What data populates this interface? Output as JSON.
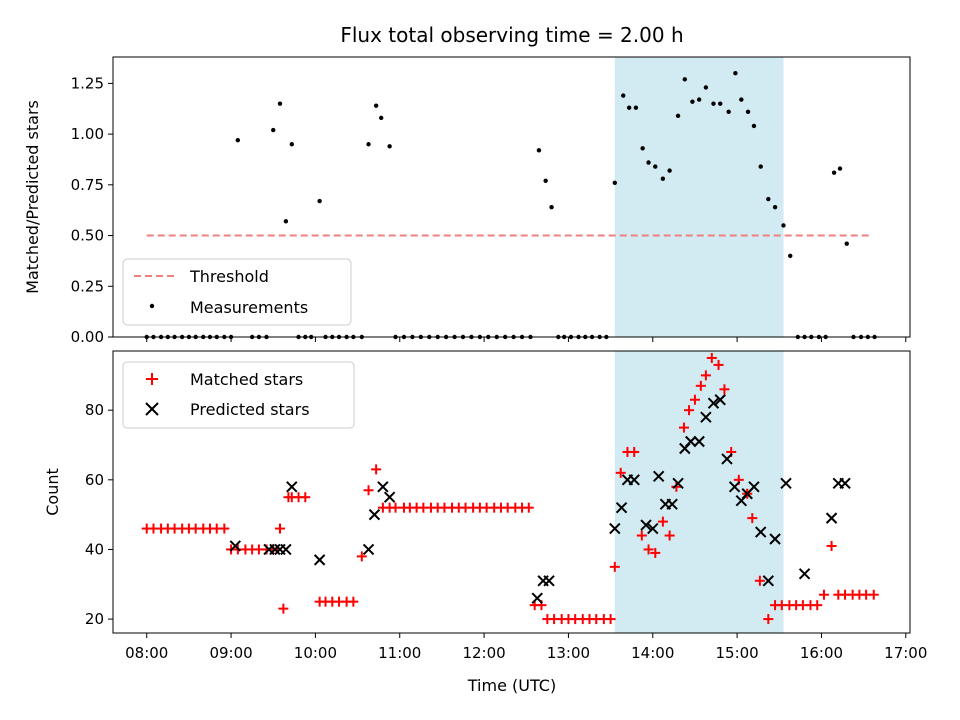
{
  "chart_data": [
    {
      "type": "scatter",
      "title": "Flux total observing time = 2.00 h",
      "xlabel": "",
      "ylabel": "Matched/Predicted stars",
      "ylim": [
        0,
        1.38
      ],
      "yticks": [
        "0.00",
        "0.25",
        "0.50",
        "0.75",
        "1.00",
        "1.25"
      ],
      "shaded_region": {
        "x_start": 13.55,
        "x_end": 15.55,
        "color": "#add8e6"
      },
      "legend_position": "lower-left",
      "series": [
        {
          "name": "Threshold",
          "style": "dashed-line",
          "color": "#f08080",
          "x": [
            8.0,
            16.6
          ],
          "y": [
            0.5,
            0.5
          ]
        },
        {
          "name": "Measurements",
          "style": "point",
          "color": "#000000",
          "x": [
            8.0,
            8.08,
            8.17,
            8.25,
            8.33,
            8.42,
            8.5,
            8.58,
            8.67,
            8.75,
            8.83,
            8.92,
            9.0,
            9.08,
            9.25,
            9.33,
            9.42,
            9.5,
            9.58,
            9.65,
            9.72,
            9.8,
            9.88,
            9.95,
            10.05,
            10.12,
            10.2,
            10.28,
            10.37,
            10.45,
            10.55,
            10.63,
            10.72,
            10.78,
            10.88,
            10.95,
            11.05,
            11.15,
            11.25,
            11.35,
            11.45,
            11.55,
            11.65,
            11.75,
            11.85,
            11.95,
            12.05,
            12.15,
            12.25,
            12.35,
            12.45,
            12.55,
            12.65,
            12.73,
            12.8,
            12.88,
            12.95,
            13.03,
            13.12,
            13.2,
            13.28,
            13.37,
            13.45,
            13.55,
            13.65,
            13.72,
            13.8,
            13.88,
            13.95,
            14.03,
            14.12,
            14.2,
            14.3,
            14.38,
            14.47,
            14.55,
            14.63,
            14.72,
            14.8,
            14.9,
            14.98,
            15.05,
            15.13,
            15.2,
            15.28,
            15.37,
            15.45,
            15.55,
            15.63,
            15.72,
            15.8,
            15.88,
            15.97,
            16.05,
            16.15,
            16.22,
            16.3,
            16.38,
            16.47,
            16.55,
            16.63
          ],
          "y": [
            0,
            0,
            0,
            0,
            0,
            0,
            0,
            0,
            0,
            0,
            0,
            0,
            0,
            0.97,
            0,
            0,
            0,
            1.02,
            1.15,
            0.57,
            0.95,
            0,
            0,
            0,
            0.67,
            0,
            0,
            0,
            0,
            0,
            0,
            0.95,
            1.14,
            1.08,
            0.94,
            0,
            0,
            0,
            0,
            0,
            0,
            0,
            0,
            0,
            0,
            0,
            0,
            0,
            0,
            0,
            0,
            0,
            0.92,
            0.77,
            0.64,
            0,
            0,
            0,
            0,
            0,
            0,
            0,
            0,
            0.76,
            1.19,
            1.13,
            1.13,
            0.93,
            0.86,
            0.84,
            0.78,
            0.82,
            1.09,
            1.27,
            1.16,
            1.17,
            1.23,
            1.15,
            1.15,
            1.11,
            1.3,
            1.17,
            1.11,
            1.04,
            0.84,
            0.68,
            0.64,
            0.55,
            0.4,
            0,
            0,
            0,
            0,
            0,
            0.81,
            0.83,
            0.46,
            0,
            0,
            0,
            0
          ]
        }
      ]
    },
    {
      "type": "scatter",
      "xlabel": "Time (UTC)",
      "ylabel": "Count",
      "ylim": [
        16,
        97
      ],
      "yticks": [
        "20",
        "40",
        "60",
        "80"
      ],
      "xlim": [
        7.6,
        17.05
      ],
      "xticks": [
        "08:00",
        "09:00",
        "10:00",
        "11:00",
        "12:00",
        "13:00",
        "14:00",
        "15:00",
        "16:00",
        "17:00"
      ],
      "shaded_region": {
        "x_start": 13.55,
        "x_end": 15.55,
        "color": "#add8e6"
      },
      "legend_position": "top-left",
      "series": [
        {
          "name": "Matched stars",
          "style": "plus",
          "color": "#ff0000",
          "x": [
            8.0,
            8.08,
            8.17,
            8.25,
            8.33,
            8.42,
            8.5,
            8.58,
            8.67,
            8.75,
            8.83,
            8.92,
            9.0,
            9.08,
            9.17,
            9.25,
            9.33,
            9.42,
            9.5,
            9.58,
            9.62,
            9.68,
            9.72,
            9.8,
            9.88,
            10.05,
            10.12,
            10.2,
            10.28,
            10.37,
            10.45,
            10.55,
            10.63,
            10.72,
            10.8,
            10.88,
            10.95,
            11.05,
            11.12,
            11.2,
            11.28,
            11.37,
            11.45,
            11.53,
            11.62,
            11.7,
            11.78,
            11.87,
            11.95,
            12.03,
            12.12,
            12.2,
            12.28,
            12.37,
            12.45,
            12.53,
            12.6,
            12.68,
            12.75,
            12.83,
            12.92,
            13.0,
            13.08,
            13.17,
            13.25,
            13.33,
            13.42,
            13.5,
            13.55,
            13.62,
            13.7,
            13.78,
            13.87,
            13.95,
            14.03,
            14.12,
            14.2,
            14.28,
            14.37,
            14.43,
            14.5,
            14.57,
            14.63,
            14.7,
            14.78,
            14.85,
            14.93,
            15.02,
            15.12,
            15.18,
            15.27,
            15.37,
            15.45,
            15.53,
            15.62,
            15.7,
            15.78,
            15.87,
            15.95,
            16.03,
            16.12,
            16.2,
            16.28,
            16.37,
            16.45,
            16.53,
            16.62
          ],
          "y": [
            46,
            46,
            46,
            46,
            46,
            46,
            46,
            46,
            46,
            46,
            46,
            46,
            40,
            40,
            40,
            40,
            40,
            40,
            40,
            46,
            23,
            55,
            55,
            55,
            55,
            25,
            25,
            25,
            25,
            25,
            25,
            38,
            57,
            63,
            52,
            52,
            52,
            52,
            52,
            52,
            52,
            52,
            52,
            52,
            52,
            52,
            52,
            52,
            52,
            52,
            52,
            52,
            52,
            52,
            52,
            52,
            24,
            24,
            20,
            20,
            20,
            20,
            20,
            20,
            20,
            20,
            20,
            20,
            35,
            62,
            68,
            68,
            44,
            40,
            39,
            48,
            44,
            58,
            75,
            80,
            83,
            87,
            90,
            95,
            93,
            86,
            68,
            60,
            56,
            49,
            31,
            20,
            24,
            24,
            24,
            24,
            24,
            24,
            24,
            27,
            41,
            27,
            27,
            27,
            27,
            27,
            27
          ]
        },
        {
          "name": "Predicted stars",
          "style": "x",
          "color": "#000000",
          "x": [
            9.05,
            9.45,
            9.52,
            9.58,
            9.65,
            9.72,
            10.05,
            10.63,
            10.7,
            10.8,
            10.88,
            12.63,
            12.7,
            12.77,
            13.55,
            13.63,
            13.7,
            13.78,
            13.92,
            14.0,
            14.07,
            14.15,
            14.23,
            14.3,
            14.38,
            14.45,
            14.55,
            14.63,
            14.72,
            14.8,
            14.88,
            14.97,
            15.05,
            15.12,
            15.2,
            15.28,
            15.37,
            15.45,
            15.58,
            15.8,
            16.12,
            16.2,
            16.28
          ],
          "y": [
            41,
            40,
            40,
            40,
            40,
            58,
            37,
            40,
            50,
            58,
            55,
            26,
            31,
            31,
            46,
            52,
            60,
            60,
            47,
            46,
            61,
            53,
            53,
            59,
            69,
            71,
            71,
            78,
            82,
            83,
            66,
            58,
            54,
            56,
            58,
            45,
            31,
            43,
            59,
            33,
            49,
            59,
            59
          ]
        }
      ]
    }
  ]
}
